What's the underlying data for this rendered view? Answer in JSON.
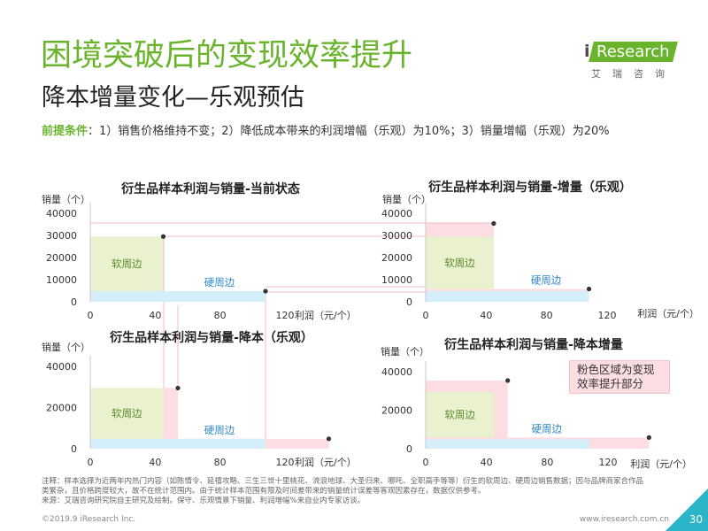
{
  "header": {
    "title": "困境突破后的变现效率提升",
    "subtitle": "降本增量变化—乐观预估"
  },
  "premise": {
    "label": "前提条件",
    "text": "：1）销售价格维持不变；2）降低成本带来的利润增幅（乐观）为10%；3）销量增幅（乐观）为20%"
  },
  "logo": {
    "mark": "i",
    "word": "Research",
    "cn": "艾瑞咨询"
  },
  "colors": {
    "brand_green": "#6ab42d",
    "soft_area": "#e9f1cf",
    "hard_area": "#d4eff9",
    "gain_area": "#fcdde1",
    "soft_label": "#5b8a2a",
    "hard_label": "#2f88c6",
    "point": "#333333",
    "guide_line": "#f2bcc4",
    "page_badge": "#2bb5c8"
  },
  "chart_data": [
    {
      "type": "area",
      "title": "衍生品样本利润与销量-当前状态",
      "xlabel": "利润（元/个）",
      "ylabel": "销量（个）",
      "xlim": [
        0,
        120
      ],
      "ylim": [
        0,
        40000
      ],
      "xticks": [
        0,
        40,
        80,
        120
      ],
      "yticks": [
        0,
        10000,
        20000,
        30000,
        40000
      ],
      "series": [
        {
          "name": "软周边",
          "base": {
            "profit": 45,
            "sales": 29500
          },
          "value": {
            "profit": 45,
            "sales": 29500
          }
        },
        {
          "name": "硬周边",
          "base": {
            "profit": 108,
            "sales": 4800
          },
          "value": {
            "profit": 108,
            "sales": 4800
          }
        }
      ]
    },
    {
      "type": "area",
      "title": "衍生品样本利润与销量-增量（乐观）",
      "xlabel": "利润（元/个）",
      "ylabel": "销量（个）",
      "xlim": [
        0,
        120
      ],
      "ylim": [
        0,
        40000
      ],
      "xticks": [
        0,
        40,
        80,
        120
      ],
      "yticks": [
        0,
        10000,
        20000,
        30000,
        40000
      ],
      "series": [
        {
          "name": "软周边",
          "base": {
            "profit": 45,
            "sales": 29500
          },
          "value": {
            "profit": 45,
            "sales": 35400
          }
        },
        {
          "name": "硬周边",
          "base": {
            "profit": 108,
            "sales": 4800
          },
          "value": {
            "profit": 108,
            "sales": 5800
          }
        }
      ]
    },
    {
      "type": "area",
      "title": "衍生品样本利润与销量-降本（乐观）",
      "xlabel": "利润（元/个）",
      "ylabel": "销量（个）",
      "xlim": [
        0,
        150
      ],
      "ylim": [
        0,
        40000
      ],
      "xticks": [
        0,
        40,
        80,
        120
      ],
      "yticks": [
        0,
        20000,
        40000
      ],
      "series": [
        {
          "name": "软周边",
          "base": {
            "profit": 45,
            "sales": 29500
          },
          "value": {
            "profit": 54,
            "sales": 29500
          }
        },
        {
          "name": "硬周边",
          "base": {
            "profit": 108,
            "sales": 4800
          },
          "value": {
            "profit": 147,
            "sales": 4800
          }
        }
      ]
    },
    {
      "type": "area",
      "title": "衍生品样本利润与销量-降本增量",
      "xlabel": "利润（元/个）",
      "ylabel": "销量（个）",
      "xlim": [
        0,
        150
      ],
      "ylim": [
        0,
        40000
      ],
      "xticks": [
        0,
        40,
        80,
        120
      ],
      "yticks": [
        0,
        20000,
        40000
      ],
      "series": [
        {
          "name": "软周边",
          "base": {
            "profit": 45,
            "sales": 29500
          },
          "value": {
            "profit": 54,
            "sales": 35400
          }
        },
        {
          "name": "硬周边",
          "base": {
            "profit": 108,
            "sales": 4800
          },
          "value": {
            "profit": 147,
            "sales": 5800
          }
        }
      ]
    }
  ],
  "annotation": {
    "lines": [
      "粉色区域为变现",
      "效率提升部分"
    ]
  },
  "notes": {
    "lines": [
      "注释：样本选择为近两年内热门内容（如陈情令、延禧攻略、三生三世十里桃花、流浪地球、大圣归来、哪吒、全职高手等等）衍生的软周边、硬周边销售数据；因与品牌商家合作品",
      "类繁杂，且价格跨度较大，故不在统计范围内。由于统计样本范围有限及时间差带来的销量统计误差等客观因素存在，数据仅供参考。",
      "来源：艾瑞咨询研究院自主研究及绘制。保守、乐观情景下销量、利润增幅%来自业内专家访谈。"
    ]
  },
  "footer": {
    "copyright": "©2019.9 iResearch Inc.",
    "website": "www.iresearch.com.cn",
    "page_number": "30"
  }
}
